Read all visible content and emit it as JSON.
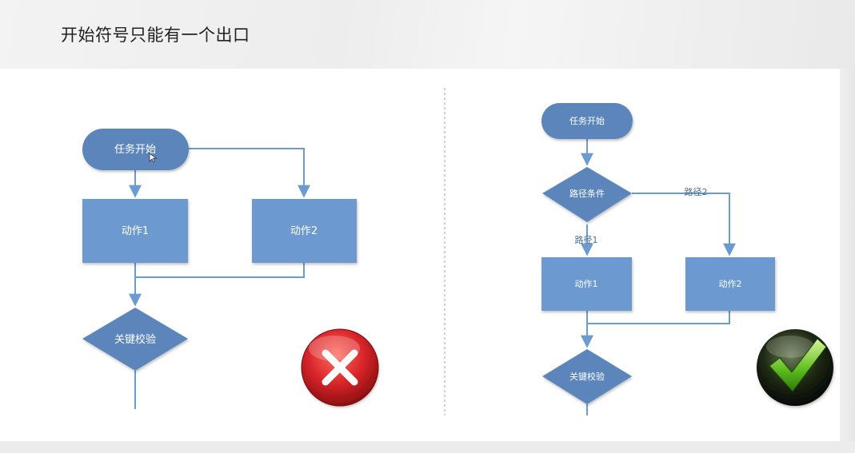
{
  "slide": {
    "title": "开始符号只能有一个出口"
  },
  "colors": {
    "node_fill": "#6c9ad0",
    "node_dark": "#5b86bb",
    "edge": "#6b9bd0",
    "wrong": "#d9262a",
    "right": "#2a7a14"
  },
  "wrong_example": {
    "start": "任务开始",
    "action1": "动作1",
    "action2": "动作2",
    "check": "关键校验",
    "verdict_icon": "red-cross-icon"
  },
  "right_example": {
    "start": "任务开始",
    "condition": "路径条件",
    "path1": "路径1",
    "path2": "路径2",
    "action1": "动作1",
    "action2": "动作2",
    "check": "关键校验",
    "verdict_icon": "green-check-icon"
  }
}
